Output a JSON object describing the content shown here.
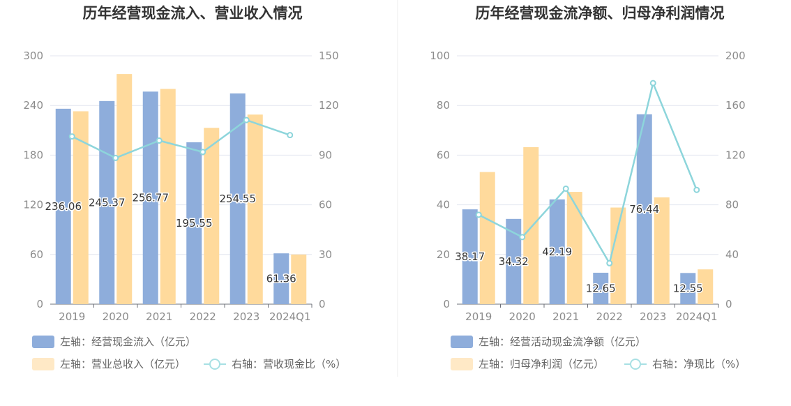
{
  "chart_data": [
    {
      "type": "bar",
      "title": "历年经营现金流入、营业收入情况",
      "categories": [
        "2019",
        "2020",
        "2021",
        "2022",
        "2023",
        "2024Q1"
      ],
      "y_left": {
        "min": 0,
        "max": 300,
        "ticks": [
          "0",
          "60",
          "120",
          "180",
          "240",
          "300"
        ]
      },
      "y_right": {
        "min": 0,
        "max": 150,
        "ticks": [
          "0",
          "30",
          "60",
          "90",
          "120",
          "150"
        ]
      },
      "grid": true,
      "legend_position": "bottom-left",
      "series": [
        {
          "name": "左轴：经营现金流入（亿元）",
          "type": "bar",
          "axis": "left",
          "color": "#8eaddb",
          "values": [
            236.06,
            245.37,
            256.77,
            195.55,
            254.55,
            61.36
          ],
          "labels": [
            "236.06",
            "245.37",
            "256.77",
            "195.55",
            "254.55",
            "61.36"
          ]
        },
        {
          "name": "左轴：营业总收入（亿元）",
          "type": "bar",
          "axis": "left",
          "color": "#ffda9c",
          "values": [
            233,
            278,
            260,
            213,
            229,
            60
          ]
        },
        {
          "name": "右轴：营收现金比（%）",
          "type": "line",
          "axis": "right",
          "color": "#8dd5db",
          "values": [
            101.3,
            88.3,
            98.8,
            91.9,
            111.2,
            102.1
          ]
        }
      ]
    },
    {
      "type": "bar",
      "title": "历年经营现金流净额、归母净利润情况",
      "categories": [
        "2019",
        "2020",
        "2021",
        "2022",
        "2023",
        "2024Q1"
      ],
      "y_left": {
        "min": 0,
        "max": 100,
        "ticks": [
          "0",
          "20",
          "40",
          "60",
          "80",
          "100"
        ]
      },
      "y_right": {
        "min": 0,
        "max": 200,
        "ticks": [
          "0",
          "40",
          "80",
          "120",
          "160",
          "200"
        ]
      },
      "grid": true,
      "legend_position": "bottom-left",
      "series": [
        {
          "name": "左轴：经营活动现金流净额（亿元）",
          "type": "bar",
          "axis": "left",
          "color": "#8eaddb",
          "values": [
            38.17,
            34.32,
            42.19,
            12.65,
            76.44,
            12.55
          ],
          "labels": [
            "38.17",
            "34.32",
            "42.19",
            "12.65",
            "76.44",
            "12.55"
          ]
        },
        {
          "name": "左轴：归母净利润（亿元）",
          "type": "bar",
          "axis": "left",
          "color": "#ffda9c",
          "values": [
            53.2,
            63.2,
            45.2,
            38.9,
            43.0,
            14.0
          ]
        },
        {
          "name": "右轴：净现比（%）",
          "type": "line",
          "axis": "right",
          "color": "#8dd5db",
          "values": [
            72,
            54,
            93,
            33,
            178,
            92
          ]
        }
      ]
    }
  ]
}
